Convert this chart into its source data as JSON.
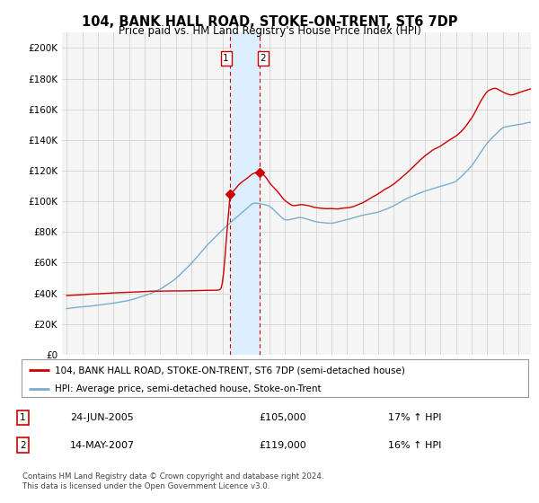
{
  "title": "104, BANK HALL ROAD, STOKE-ON-TRENT, ST6 7DP",
  "subtitle": "Price paid vs. HM Land Registry's House Price Index (HPI)",
  "legend_line1": "104, BANK HALL ROAD, STOKE-ON-TRENT, ST6 7DP (semi-detached house)",
  "legend_line2": "HPI: Average price, semi-detached house, Stoke-on-Trent",
  "footer": "Contains HM Land Registry data © Crown copyright and database right 2024.\nThis data is licensed under the Open Government Licence v3.0.",
  "transaction1_date": "24-JUN-2005",
  "transaction1_price": "£105,000",
  "transaction1_hpi": "17% ↑ HPI",
  "transaction1_year": 2005.48,
  "transaction1_value": 105000,
  "transaction2_date": "14-MAY-2007",
  "transaction2_price": "£119,000",
  "transaction2_hpi": "16% ↑ HPI",
  "transaction2_year": 2007.37,
  "transaction2_value": 119000,
  "red_color": "#cc0000",
  "blue_color": "#7aadcf",
  "shading_color": "#ddeeff",
  "yticks": [
    0,
    20000,
    40000,
    60000,
    80000,
    100000,
    120000,
    140000,
    160000,
    180000,
    200000
  ],
  "ylim": [
    0,
    210000
  ],
  "xlim_start": 1994.7,
  "xlim_end": 2024.8,
  "background_color": "#ffffff",
  "plot_bg_color": "#f5f5f5"
}
